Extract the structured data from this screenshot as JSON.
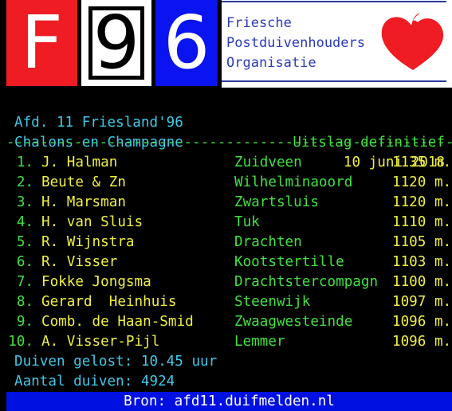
{
  "logo": {
    "letters": [
      "F",
      "9",
      "6"
    ],
    "org_lines": [
      "Friesche",
      "Postduivenhouders",
      "Organisatie"
    ],
    "colors": {
      "red": "#ef1c24",
      "blue": "#0a14f0",
      "org_text": "#2a3ab8",
      "heart": "#ef1c24"
    }
  },
  "info": {
    "division": "Afd. 11 Friesland'96",
    "status": "Uitslag definitief",
    "race": "Chalons en Champagne",
    "date": "10 juni 2018"
  },
  "divider": "-----------------------------------------------------------",
  "results": [
    {
      "rank": "1.",
      "name": "J. Halman",
      "place": "Zuidveen",
      "distance": "1135 m."
    },
    {
      "rank": "2.",
      "name": "Beute & Zn",
      "place": "Wilhelminaoord",
      "distance": "1120 m."
    },
    {
      "rank": "3.",
      "name": "H. Marsman",
      "place": "Zwartsluis",
      "distance": "1120 m."
    },
    {
      "rank": "4.",
      "name": "H. van Sluis",
      "place": "Tuk",
      "distance": "1110 m."
    },
    {
      "rank": "5.",
      "name": "R. Wijnstra",
      "place": "Drachten",
      "distance": "1105 m."
    },
    {
      "rank": "6.",
      "name": "R. Visser",
      "place": "Kootstertille",
      "distance": "1103 m."
    },
    {
      "rank": "7.",
      "name": "Fokke Jongsma",
      "place": "Drachtstercompagn",
      "distance": "1100 m."
    },
    {
      "rank": "8.",
      "name": "Gerard  Heinhuis",
      "place": "Steenwijk",
      "distance": "1097 m."
    },
    {
      "rank": "9.",
      "name": "Comb. de Haan-Smid",
      "place": "Zwaagwesteinde",
      "distance": "1096 m."
    },
    {
      "rank": "10.",
      "name": "A. Visser-Pijl",
      "place": "Lemmer",
      "distance": "1096 m."
    }
  ],
  "summary": {
    "released": "Duiven gelost: 10.45 uur",
    "count": "Aantal duiven: 4924"
  },
  "footer": {
    "source": "Bron: afd11.duifmelden.nl"
  }
}
